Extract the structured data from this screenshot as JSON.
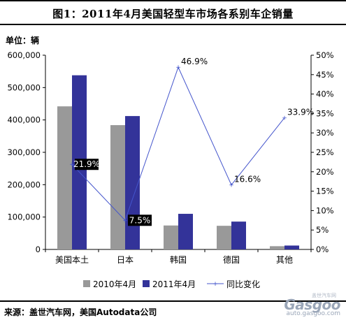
{
  "header": {
    "title": "图1：2011年4月美国轻型车市场各系别车企销量"
  },
  "unit_label": "单位：辆",
  "source_label": "来源：盖世汽车网，美国Autodata公司",
  "watermark": {
    "logo": "Gasgoo",
    "site": "auto.gasgoo.com",
    "cn": "盖世汽车网"
  },
  "colors": {
    "bar2010": "#999999",
    "bar2011": "#333399",
    "line": "#4455cc",
    "label_bg": "#000000"
  },
  "chart_data": {
    "type": "bar",
    "categories": [
      "美国本土",
      "日本",
      "韩国",
      "德国",
      "其他"
    ],
    "series": [
      {
        "name": "2010年4月",
        "type": "bar",
        "axis": "left",
        "values": [
          442000,
          384000,
          74000,
          73000,
          10000
        ]
      },
      {
        "name": "2011年4月",
        "type": "bar",
        "axis": "left",
        "values": [
          538000,
          412000,
          110000,
          86000,
          12000
        ]
      },
      {
        "name": "同比变化",
        "type": "line",
        "axis": "right",
        "values": [
          0.219,
          0.075,
          0.469,
          0.166,
          0.339
        ]
      }
    ],
    "point_labels": [
      "21.9%",
      "7.5%",
      "46.9%",
      "16.6%",
      "33.9%"
    ],
    "y_left": {
      "min": 0,
      "max": 600000,
      "ticks": [
        "0",
        "100,000",
        "200,000",
        "300,000",
        "400,000",
        "500,000",
        "600,000"
      ]
    },
    "y_right": {
      "min": 0,
      "max": 0.5,
      "ticks": [
        "0%",
        "5%",
        "10%",
        "15%",
        "20%",
        "25%",
        "30%",
        "35%",
        "40%",
        "45%",
        "50%"
      ]
    },
    "legend_position": "bottom",
    "grid": false
  }
}
